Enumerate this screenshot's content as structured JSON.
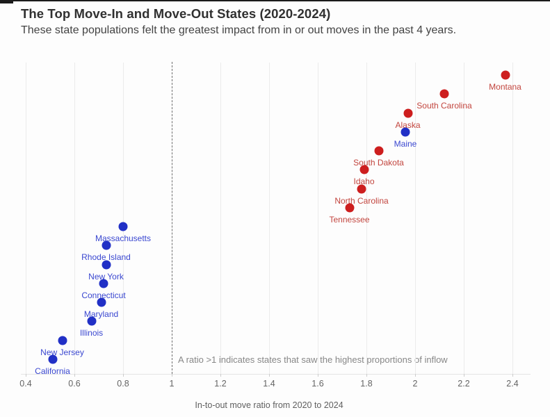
{
  "chart_data": {
    "type": "scatter",
    "title": "The Top Move-In and Move-Out States (2020-2024)",
    "subtitle": "These state populations felt the greatest impact from in or out moves in the past 4 years.",
    "xlabel": "In-to-out move ratio from 2020 to 2024",
    "ylabel": "",
    "xlim": [
      0.4,
      2.4
    ],
    "x_ticks": [
      "0.4",
      "0.6",
      "0.8",
      "1",
      "1.2",
      "1.4",
      "1.6",
      "1.8",
      "2",
      "2.2",
      "2.4"
    ],
    "grid": "vertical gridlines only, no y axis",
    "legend": "none",
    "ordering": "points ranked by ratio descending, top to bottom",
    "reference_line": {
      "x": 1,
      "style": "dashed"
    },
    "annotation": "A ratio >1 indicates states that saw the highest proportions of inflow",
    "points": [
      {
        "state": "Montana",
        "ratio": 2.37,
        "color": "red"
      },
      {
        "state": "South Carolina",
        "ratio": 2.12,
        "color": "red"
      },
      {
        "state": "Alaska",
        "ratio": 1.97,
        "color": "red"
      },
      {
        "state": "Maine",
        "ratio": 1.96,
        "color": "blue"
      },
      {
        "state": "South Dakota",
        "ratio": 1.85,
        "color": "red"
      },
      {
        "state": "Idaho",
        "ratio": 1.79,
        "color": "red"
      },
      {
        "state": "North Carolina",
        "ratio": 1.78,
        "color": "red"
      },
      {
        "state": "Tennessee",
        "ratio": 1.73,
        "color": "red"
      },
      {
        "state": "Massachusetts",
        "ratio": 0.8,
        "color": "blue"
      },
      {
        "state": "Rhode Island",
        "ratio": 0.73,
        "color": "blue"
      },
      {
        "state": "New York",
        "ratio": 0.73,
        "color": "blue"
      },
      {
        "state": "Connecticut",
        "ratio": 0.72,
        "color": "blue"
      },
      {
        "state": "Maryland",
        "ratio": 0.71,
        "color": "blue"
      },
      {
        "state": "Illinois",
        "ratio": 0.67,
        "color": "blue"
      },
      {
        "state": "New Jersey",
        "ratio": 0.55,
        "color": "blue"
      },
      {
        "state": "California",
        "ratio": 0.51,
        "color": "blue"
      }
    ],
    "colors": {
      "red_dot": "#cd1e1e",
      "red_label": "#c2453e",
      "blue_dot": "#2130c6",
      "blue_label": "#3a47d0"
    }
  }
}
